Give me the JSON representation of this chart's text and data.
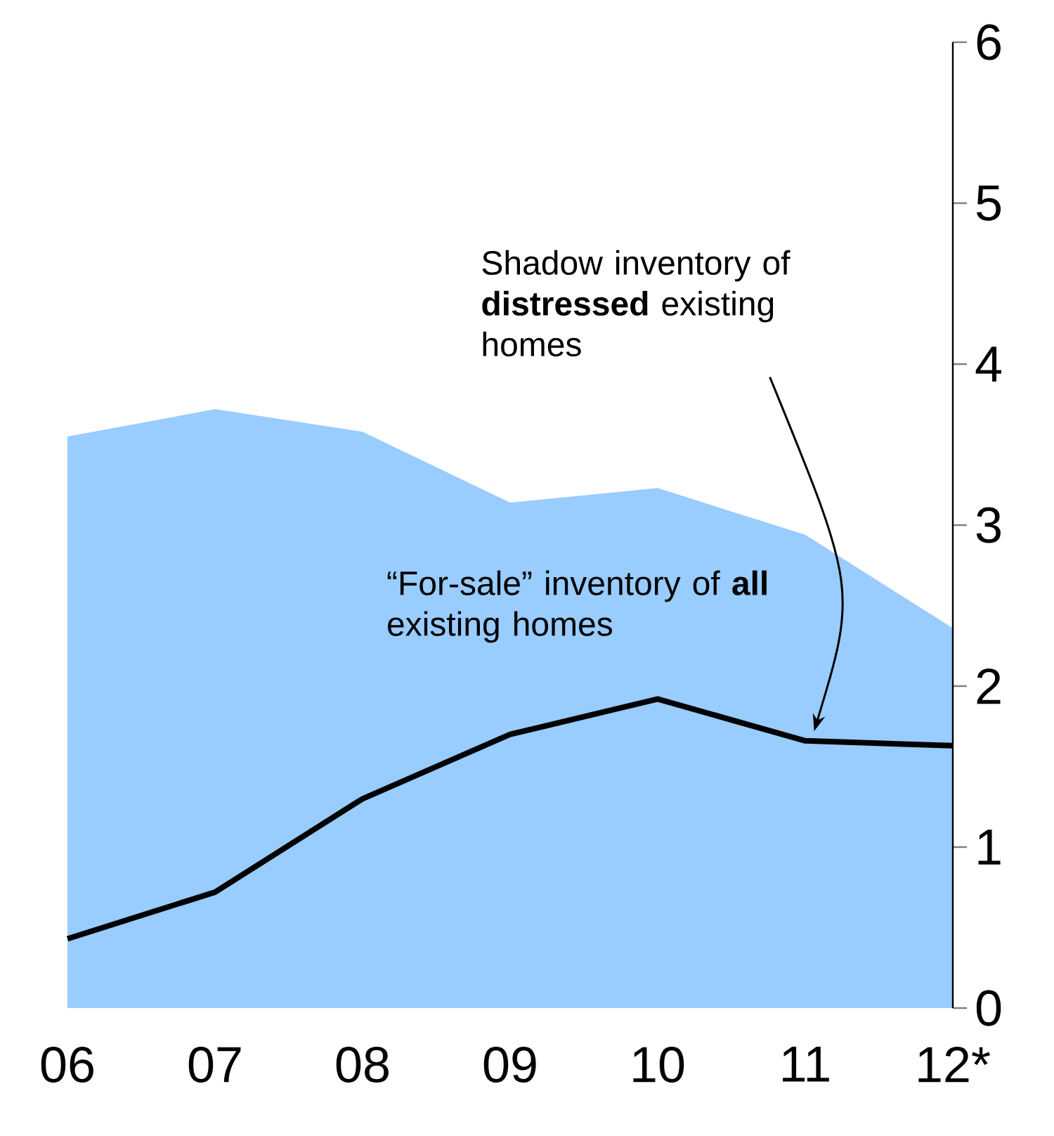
{
  "chart_data": {
    "type": "area",
    "categories": [
      "06",
      "07",
      "08",
      "09",
      "10",
      "11",
      "12*"
    ],
    "series": [
      {
        "name": "Shadow inventory of **distressed** existing homes",
        "color": "#99ccff",
        "values": [
          3.55,
          3.72,
          3.58,
          3.14,
          3.23,
          2.94,
          2.36
        ]
      },
      {
        "type": "line",
        "name": "“For-sale” inventory of **all** existing homes",
        "color": "#000000",
        "values": [
          0.43,
          0.72,
          1.3,
          1.7,
          1.92,
          1.66,
          1.63
        ]
      }
    ],
    "ylim": [
      0,
      6
    ],
    "yticks": [
      0,
      1,
      2,
      3,
      4,
      5,
      6
    ]
  }
}
